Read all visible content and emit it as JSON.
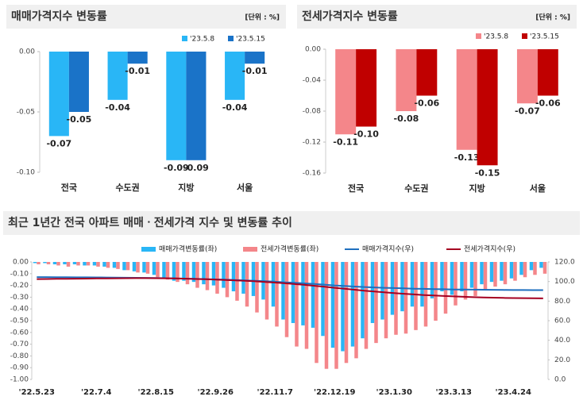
{
  "chart_data": [
    {
      "type": "bar",
      "title": "매매가격지수 변동률",
      "unit_label": "[단위 : %]",
      "categories": [
        "전국",
        "수도권",
        "지방",
        "서울"
      ],
      "series": [
        {
          "name": "'23.5.8",
          "color": "#29b6f6",
          "values": [
            -0.07,
            -0.04,
            -0.09,
            -0.04
          ]
        },
        {
          "name": "'23.5.15",
          "color": "#1a73c8",
          "values": [
            -0.05,
            -0.01,
            -0.09,
            -0.01
          ]
        }
      ],
      "ylim": [
        -0.1,
        0
      ],
      "yticks": [
        {
          "value": 0,
          "label": "0.00"
        },
        {
          "value": -0.05,
          "label": "-0.05"
        },
        {
          "value": -0.1,
          "label": "-0.10"
        }
      ]
    },
    {
      "type": "bar",
      "title": "전세가격지수 변동률",
      "unit_label": "[단위 : %]",
      "categories": [
        "전국",
        "수도권",
        "지방",
        "서울"
      ],
      "series": [
        {
          "name": "'23.5.8",
          "color": "#f4868a",
          "values": [
            -0.11,
            -0.08,
            -0.13,
            -0.07
          ]
        },
        {
          "name": "'23.5.15",
          "color": "#c00000",
          "values": [
            -0.1,
            -0.06,
            -0.15,
            -0.06
          ],
          "value_labels": [
            "-0.10",
            "-0.06",
            "-0.15",
            "-0.06"
          ]
        }
      ],
      "ylim": [
        -0.16,
        0
      ],
      "yticks": [
        {
          "value": 0,
          "label": "0.00"
        },
        {
          "value": -0.04,
          "label": "-0.04"
        },
        {
          "value": -0.08,
          "label": "-0.08"
        },
        {
          "value": -0.12,
          "label": "-0.12"
        },
        {
          "value": -0.16,
          "label": "-0.16"
        }
      ]
    },
    {
      "type": "combo",
      "title": "최근 1년간 전국 아파트 매매ㆍ전세가격 지수 및 변동률 추이",
      "categories": [
        "'22.5.23",
        null,
        null,
        null,
        null,
        null,
        "'22.7.4",
        null,
        null,
        null,
        null,
        null,
        "'22.8.15",
        null,
        null,
        null,
        null,
        null,
        "'22.9.26",
        null,
        null,
        null,
        null,
        null,
        "'22.11.7",
        null,
        null,
        null,
        null,
        null,
        "'22.12.19",
        null,
        null,
        null,
        null,
        null,
        "'23.1.30",
        null,
        null,
        null,
        null,
        null,
        "'23.3.13",
        null,
        null,
        null,
        null,
        null,
        "'23.4.24",
        null,
        null,
        null
      ],
      "series": [
        {
          "name": "매매가격변동률(좌)",
          "color": "#29b6f6",
          "kind": "bar",
          "values": [
            -0.01,
            -0.01,
            -0.02,
            -0.02,
            -0.02,
            -0.03,
            -0.03,
            -0.04,
            -0.05,
            -0.07,
            -0.08,
            -0.09,
            -0.11,
            -0.14,
            -0.16,
            -0.16,
            -0.17,
            -0.19,
            -0.2,
            -0.22,
            -0.25,
            -0.27,
            -0.29,
            -0.32,
            -0.38,
            -0.49,
            -0.52,
            -0.54,
            -0.56,
            -0.63,
            -0.73,
            -0.76,
            -0.72,
            -0.65,
            -0.52,
            -0.49,
            -0.45,
            -0.42,
            -0.38,
            -0.38,
            -0.31,
            -0.25,
            -0.28,
            -0.25,
            -0.22,
            -0.19,
            -0.17,
            -0.16,
            -0.14,
            -0.11,
            -0.07,
            -0.05
          ]
        },
        {
          "name": "전세가격변동률(좌)",
          "color": "#f4868a",
          "kind": "bar",
          "values": [
            -0.02,
            -0.02,
            -0.03,
            -0.04,
            -0.03,
            -0.03,
            -0.04,
            -0.05,
            -0.06,
            -0.07,
            -0.09,
            -0.1,
            -0.13,
            -0.15,
            -0.17,
            -0.19,
            -0.22,
            -0.24,
            -0.27,
            -0.3,
            -0.33,
            -0.38,
            -0.43,
            -0.49,
            -0.55,
            -0.64,
            -0.72,
            -0.74,
            -0.86,
            -0.91,
            -0.91,
            -0.86,
            -0.82,
            -0.74,
            -0.69,
            -0.65,
            -0.62,
            -0.61,
            -0.58,
            -0.55,
            -0.5,
            -0.44,
            -0.37,
            -0.32,
            -0.29,
            -0.23,
            -0.21,
            -0.19,
            -0.16,
            -0.13,
            -0.11,
            -0.1
          ]
        },
        {
          "name": "매매가격지수(우)",
          "color": "#1f6fbf",
          "kind": "line",
          "axis": "y2",
          "values": [
            104.5,
            104.5,
            104.4,
            104.4,
            104.3,
            104.3,
            104.2,
            104.1,
            104.0,
            103.9,
            103.8,
            103.7,
            103.6,
            103.4,
            103.2,
            103.0,
            102.8,
            102.5,
            102.2,
            101.9,
            101.6,
            101.2,
            100.8,
            100.3,
            99.8,
            99.2,
            98.7,
            98.1,
            97.5,
            96.8,
            96.0,
            95.4,
            94.9,
            94.4,
            94.0,
            93.6,
            93.3,
            93.0,
            92.7,
            92.5,
            92.3,
            92.1,
            91.9,
            91.8,
            91.7,
            91.6,
            91.5,
            91.4,
            91.3,
            91.3,
            91.2,
            91.2
          ]
        },
        {
          "name": "전세가격지수(우)",
          "color": "#a50021",
          "kind": "line",
          "axis": "y2",
          "values": [
            102.5,
            102.6,
            102.7,
            102.8,
            102.9,
            103.0,
            103.1,
            103.2,
            103.3,
            103.4,
            103.5,
            103.5,
            103.4,
            103.3,
            103.1,
            102.9,
            102.6,
            102.3,
            102.0,
            101.6,
            101.2,
            100.7,
            100.2,
            99.6,
            98.9,
            98.2,
            97.4,
            96.6,
            95.6,
            94.6,
            93.6,
            92.6,
            91.6,
            90.6,
            89.8,
            89.0,
            88.2,
            87.5,
            86.8,
            86.2,
            85.7,
            85.2,
            84.8,
            84.4,
            84.0,
            83.7,
            83.5,
            83.3,
            83.1,
            83.0,
            82.9,
            82.8
          ]
        }
      ],
      "ylim": [
        -1,
        0
      ],
      "yticks": [
        {
          "value": 0,
          "label": "0.00"
        },
        {
          "value": -0.1,
          "label": "-0.10"
        },
        {
          "value": -0.2,
          "label": "-0.20"
        },
        {
          "value": -0.3,
          "label": "-0.30"
        },
        {
          "value": -0.4,
          "label": "-0.40"
        },
        {
          "value": -0.5,
          "label": "-0.50"
        },
        {
          "value": -0.6,
          "label": "-0.60"
        },
        {
          "value": -0.7,
          "label": "-0.70"
        },
        {
          "value": -0.8,
          "label": "-0.80"
        },
        {
          "value": -0.9,
          "label": "-0.90"
        },
        {
          "value": -1,
          "label": "-1.00"
        }
      ],
      "y2lim": [
        0,
        120
      ],
      "y2ticks": [
        {
          "value": 120,
          "label": "120.0"
        },
        {
          "value": 100,
          "label": "100.0"
        },
        {
          "value": 80,
          "label": "80.0"
        },
        {
          "value": 60,
          "label": "60.0"
        },
        {
          "value": 40,
          "label": "40.0"
        },
        {
          "value": 20,
          "label": "20.0"
        },
        {
          "value": 0,
          "label": "0.0"
        }
      ]
    }
  ]
}
